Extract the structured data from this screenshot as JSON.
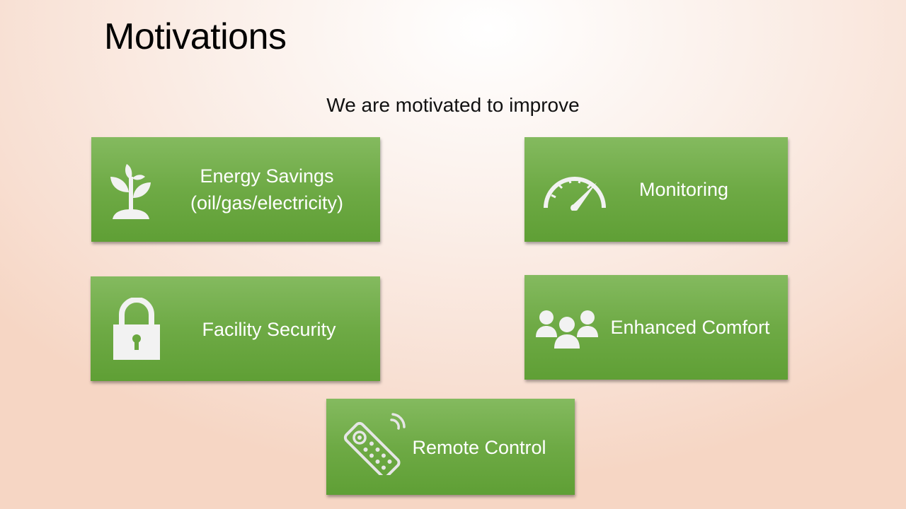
{
  "slide": {
    "title": "Motivations",
    "subtitle": "We are motivated to improve"
  },
  "cards": {
    "energy": {
      "label_line1": "Energy Savings",
      "label_line2": "(oil/gas/electricity)",
      "icon": "plant-sprout-icon"
    },
    "monitoring": {
      "label": "Monitoring",
      "icon": "speedometer-gauge-icon"
    },
    "security": {
      "label": "Facility Security",
      "icon": "padlock-icon"
    },
    "comfort": {
      "label": "Enhanced Comfort",
      "icon": "people-group-icon"
    },
    "remote": {
      "label": "Remote Control",
      "icon": "remote-control-icon"
    }
  },
  "colors": {
    "card_top": "#84ba5f",
    "card_bottom": "#5f9f35",
    "icon": "#f2f2f2",
    "text": "#ffffff"
  }
}
